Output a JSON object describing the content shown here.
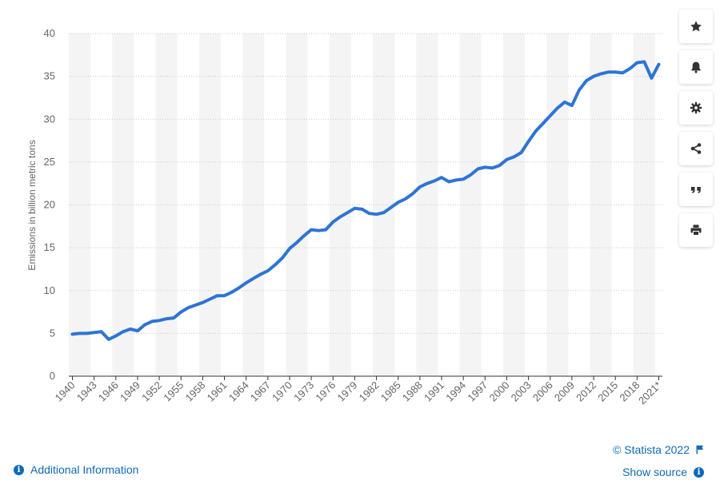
{
  "chart_data": {
    "type": "line",
    "title": "",
    "xlabel": "",
    "ylabel": "Emissions in billion metric tons",
    "ylim": [
      0,
      40
    ],
    "yticks": [
      0,
      5,
      10,
      15,
      20,
      25,
      30,
      35,
      40
    ],
    "x_tick_labels": [
      "1940",
      "1943",
      "1946",
      "1949",
      "1952",
      "1955",
      "1958",
      "1961",
      "1964",
      "1967",
      "1970",
      "1973",
      "1976",
      "1979",
      "1982",
      "1985",
      "1988",
      "1991",
      "1994",
      "1997",
      "2000",
      "2003",
      "2006",
      "2009",
      "2012",
      "2015",
      "2018",
      "2021*"
    ],
    "grid": "horizontal dotted",
    "line_color": "#2e74d6",
    "x": [
      1940,
      1941,
      1942,
      1943,
      1944,
      1945,
      1946,
      1947,
      1948,
      1949,
      1950,
      1951,
      1952,
      1953,
      1954,
      1955,
      1956,
      1957,
      1958,
      1959,
      1960,
      1961,
      1962,
      1963,
      1964,
      1965,
      1966,
      1967,
      1968,
      1969,
      1970,
      1971,
      1972,
      1973,
      1974,
      1975,
      1976,
      1977,
      1978,
      1979,
      1980,
      1981,
      1982,
      1983,
      1984,
      1985,
      1986,
      1987,
      1988,
      1989,
      1990,
      1991,
      1992,
      1993,
      1994,
      1995,
      1996,
      1997,
      1998,
      1999,
      2000,
      2001,
      2002,
      2003,
      2004,
      2005,
      2006,
      2007,
      2008,
      2009,
      2010,
      2011,
      2012,
      2013,
      2014,
      2015,
      2016,
      2017,
      2018,
      2019,
      2020,
      2021
    ],
    "series": [
      {
        "values": [
          4.9,
          5.0,
          5.0,
          5.1,
          5.2,
          4.3,
          4.7,
          5.2,
          5.5,
          5.3,
          6.0,
          6.4,
          6.5,
          6.7,
          6.8,
          7.5,
          8.0,
          8.3,
          8.6,
          9.0,
          9.4,
          9.4,
          9.8,
          10.3,
          10.9,
          11.4,
          11.9,
          12.3,
          13.0,
          13.8,
          14.9,
          15.6,
          16.4,
          17.1,
          17.0,
          17.1,
          18.0,
          18.6,
          19.1,
          19.6,
          19.5,
          19.0,
          18.9,
          19.1,
          19.7,
          20.3,
          20.7,
          21.3,
          22.1,
          22.5,
          22.8,
          23.2,
          22.7,
          22.9,
          23.0,
          23.5,
          24.2,
          24.4,
          24.3,
          24.6,
          25.3,
          25.6,
          26.1,
          27.4,
          28.6,
          29.5,
          30.4,
          31.3,
          32.0,
          31.6,
          33.4,
          34.5,
          35.0,
          35.3,
          35.5,
          35.5,
          35.4,
          35.9,
          36.6,
          36.7,
          34.8,
          36.4
        ]
      }
    ]
  },
  "sidebar": {
    "buttons": [
      {
        "name": "star-icon"
      },
      {
        "name": "bell-icon"
      },
      {
        "name": "gear-icon"
      },
      {
        "name": "share-icon"
      },
      {
        "name": "quote-icon"
      },
      {
        "name": "print-icon"
      }
    ]
  },
  "footer": {
    "copyright": "© Statista 2022",
    "additional_info": "Additional Information",
    "show_source": "Show source"
  },
  "colors": {
    "accent": "#0e6ab8",
    "line": "#2e74d6",
    "band": "#f4f4f4"
  }
}
